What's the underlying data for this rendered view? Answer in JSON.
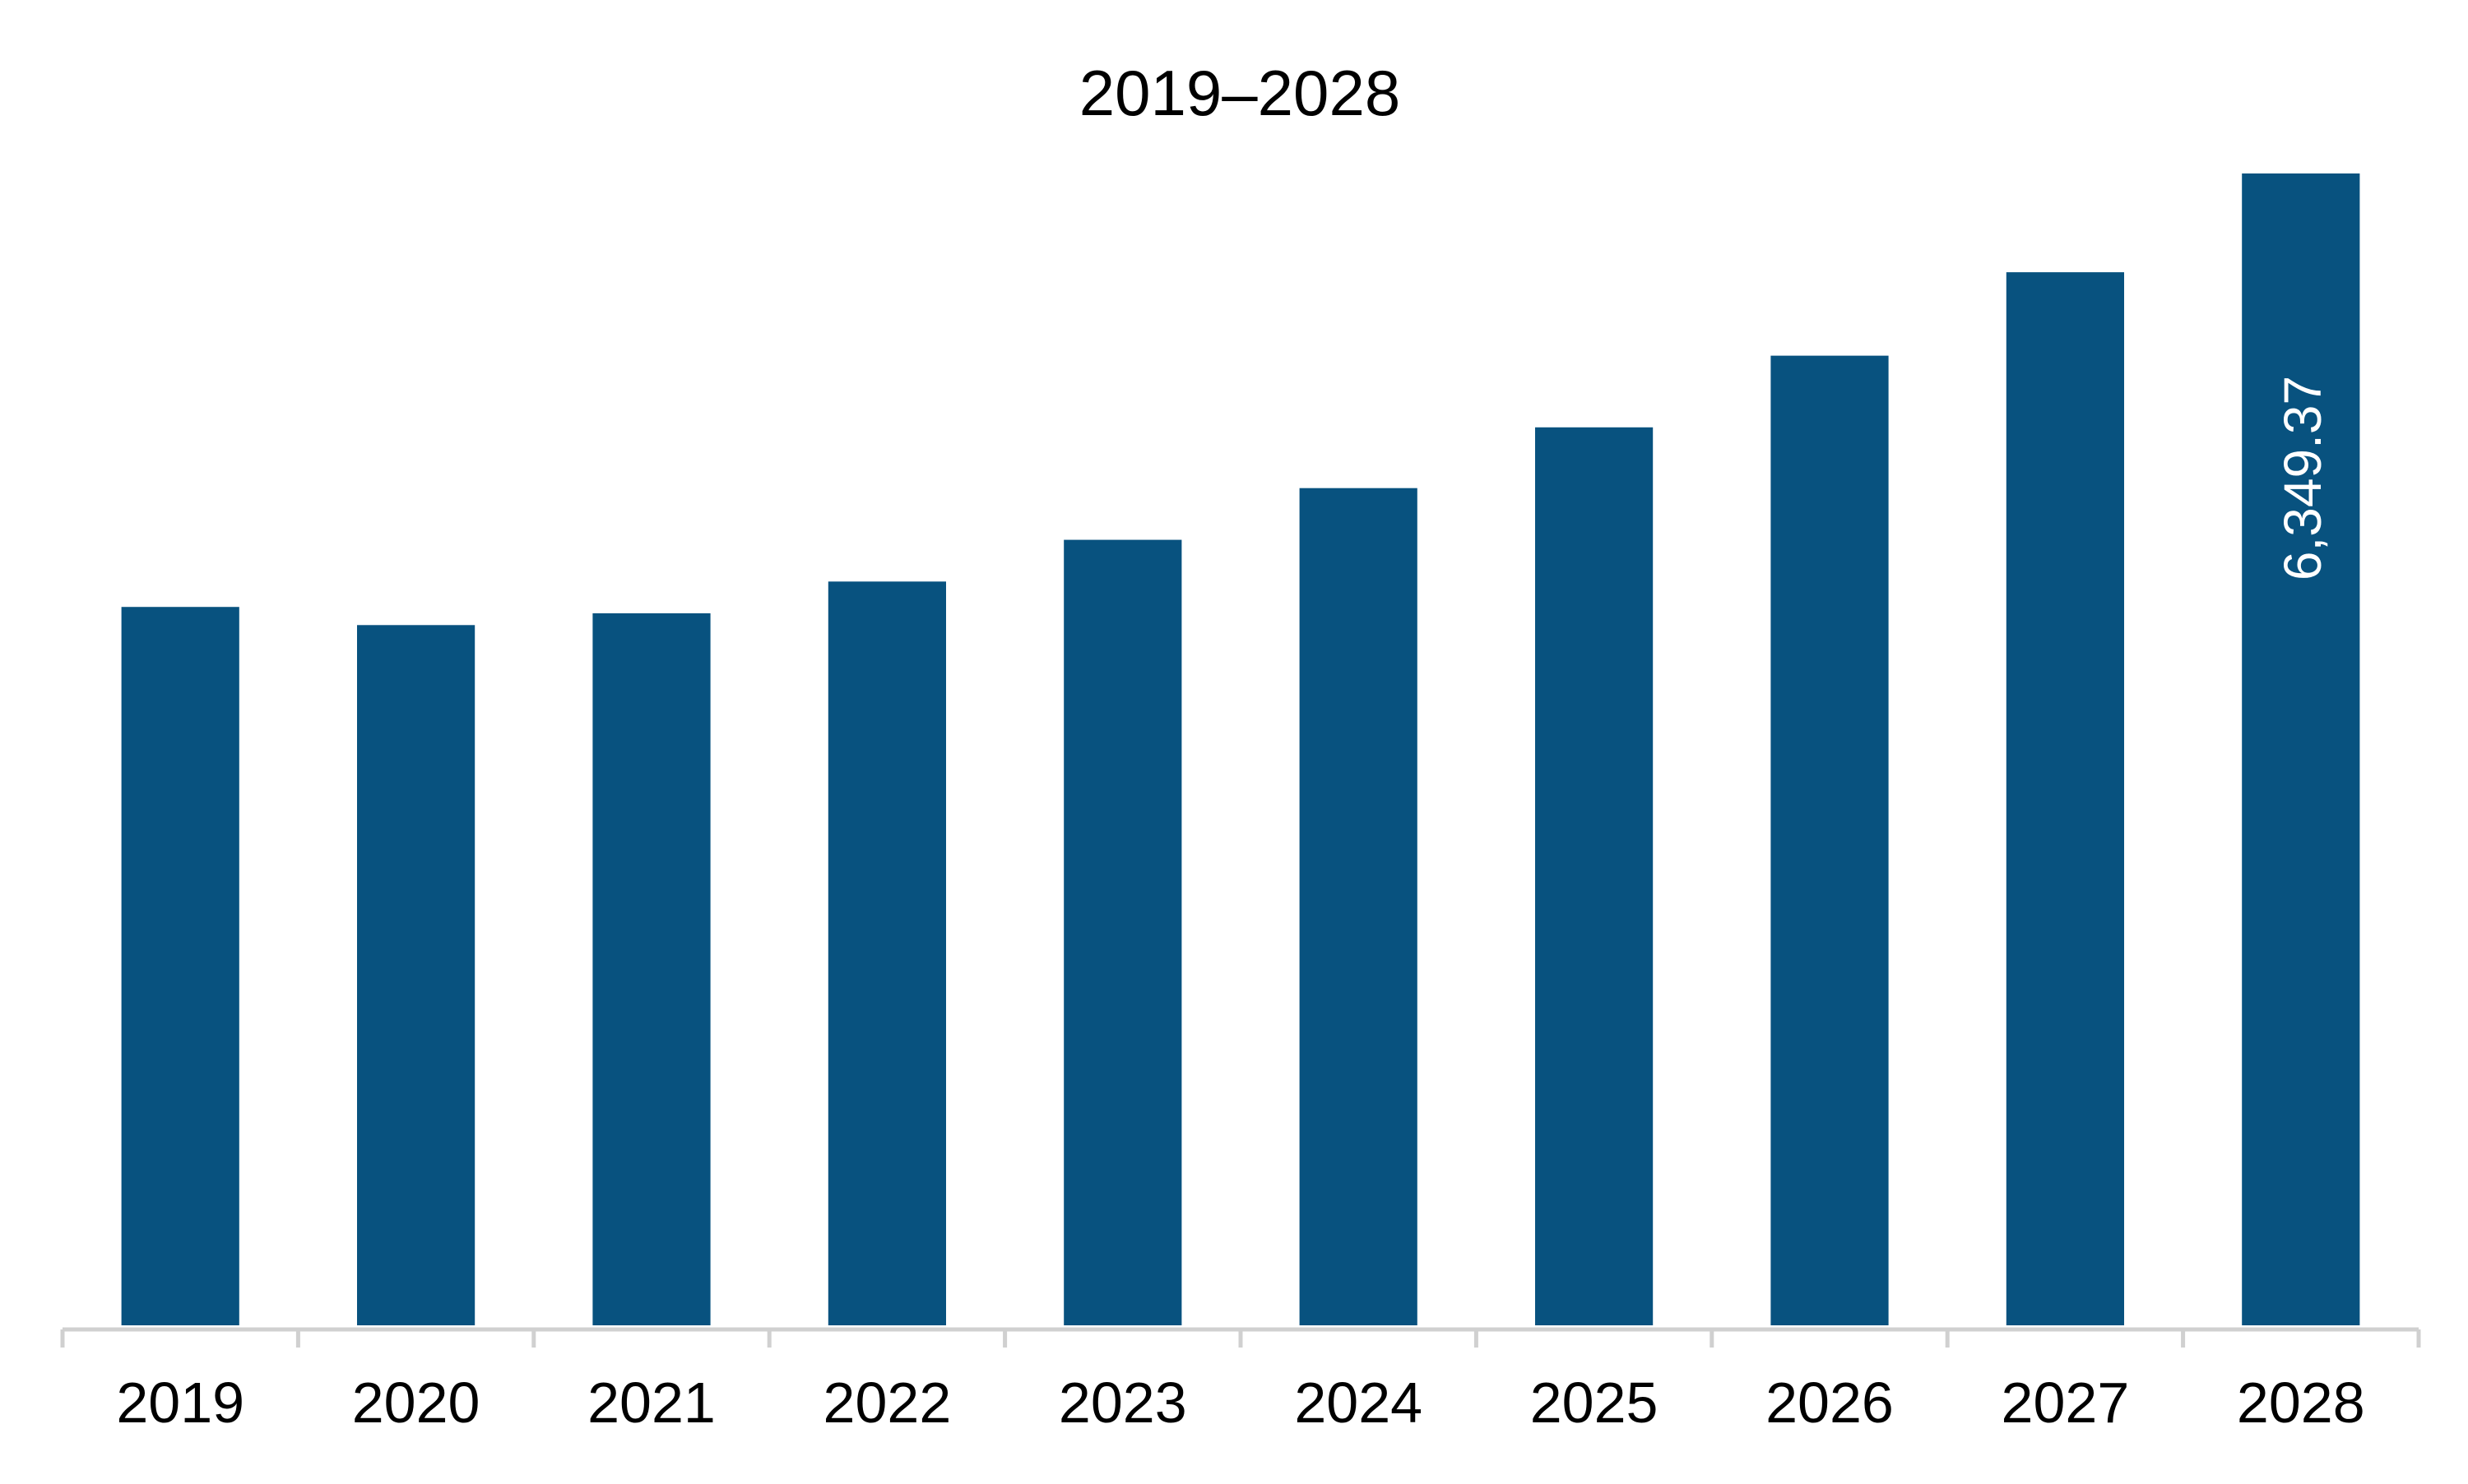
{
  "chart_data": {
    "type": "bar",
    "title": "2019–2028",
    "xlabel": "",
    "ylabel": "",
    "categories": [
      "2019",
      "2020",
      "2021",
      "2022",
      "2023",
      "2024",
      "2025",
      "2026",
      "2027",
      "2028"
    ],
    "values": [
      3960,
      3860,
      3925,
      4100,
      4330,
      4615,
      4950,
      5345,
      5805,
      6349.37
    ],
    "data_labels": [
      "",
      "",
      "",
      "",
      "",
      "",
      "",
      "",
      "",
      "6,349.37"
    ],
    "ylim": [
      0,
      6349.37
    ],
    "grid": false,
    "legend": "none",
    "bar_color": "#08527f",
    "axis_color": "#d0d0d0",
    "label_color": "#ffffff",
    "text_color": "#000000"
  }
}
